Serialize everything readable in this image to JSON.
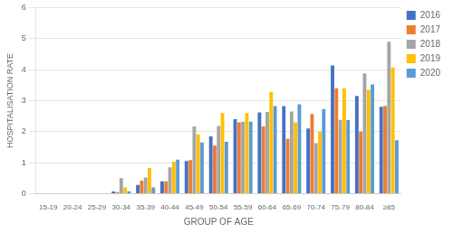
{
  "chart_data": {
    "type": "bar",
    "categories": [
      "15-19",
      "20-24",
      "25-29",
      "30-34",
      "35-39",
      "40-44",
      "45-49",
      "50-54",
      "55-59",
      "60-64",
      "65-69",
      "70-74",
      "75-79",
      "80-84",
      "≥85"
    ],
    "series": [
      {
        "name": "2016",
        "color": "#4472C4",
        "values": [
          0,
          0,
          0,
          0.07,
          0.28,
          0.4,
          1.05,
          1.85,
          2.4,
          2.62,
          2.82,
          2.1,
          4.13,
          3.15,
          2.8
        ]
      },
      {
        "name": "2017",
        "color": "#ED7D31",
        "values": [
          0,
          0,
          0,
          0.05,
          0.42,
          0.4,
          1.08,
          1.55,
          2.3,
          2.17,
          1.77,
          2.57,
          3.4,
          2.0,
          2.83
        ]
      },
      {
        "name": "2018",
        "color": "#A5A5A5",
        "values": [
          0,
          0,
          0,
          0.5,
          0.52,
          0.85,
          2.17,
          2.18,
          2.32,
          2.63,
          2.65,
          1.63,
          2.38,
          3.88,
          4.9
        ]
      },
      {
        "name": "2019",
        "color": "#FFC000",
        "values": [
          0,
          0,
          0,
          0.2,
          0.83,
          1.03,
          1.91,
          2.6,
          2.6,
          3.28,
          2.3,
          2.0,
          3.4,
          3.35,
          4.07
        ]
      },
      {
        "name": "2020",
        "color": "#5B9BD5",
        "values": [
          0,
          0,
          0,
          0.08,
          0.2,
          1.1,
          1.65,
          1.67,
          2.32,
          2.82,
          2.88,
          2.73,
          2.37,
          3.52,
          1.72
        ]
      }
    ],
    "xlabel": "GROUP OF AGE",
    "ylabel": "HOSPITALISATION RATE",
    "ylim": [
      0,
      6
    ],
    "yticks": [
      0,
      1,
      2,
      3,
      4,
      5,
      6
    ],
    "grid": true,
    "legend": "right"
  }
}
